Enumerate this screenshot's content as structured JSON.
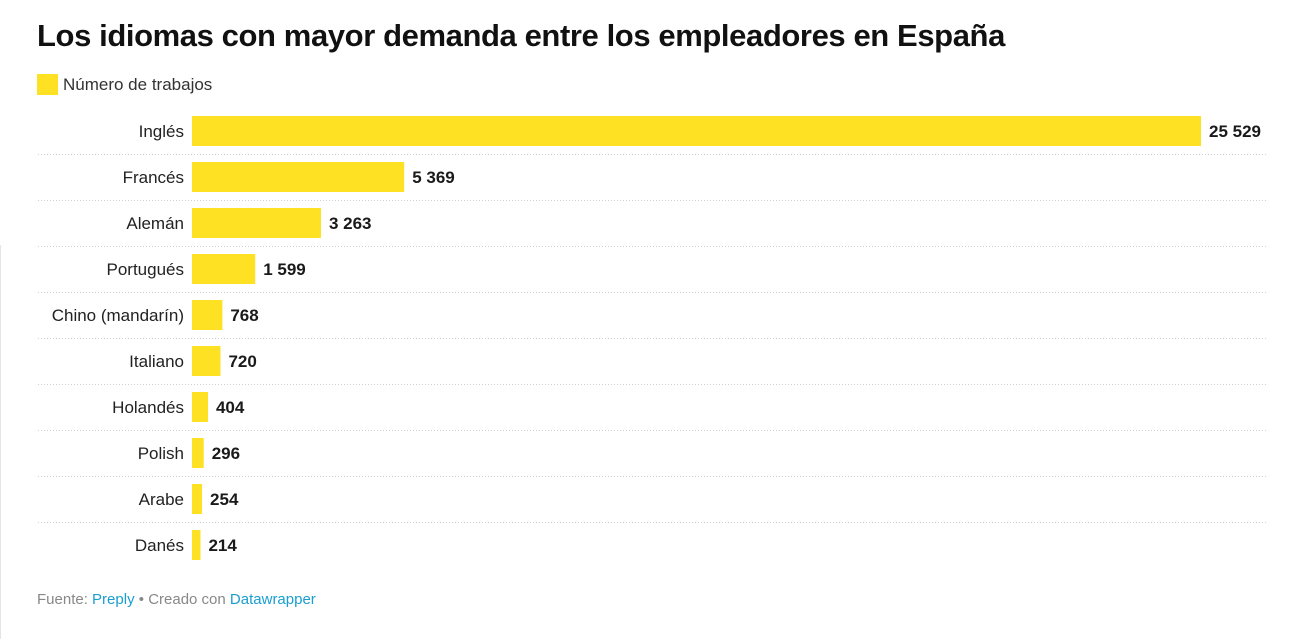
{
  "colors": {
    "bar": "#fee122",
    "label": "#222222",
    "value": "#1a1a1a",
    "grid": "#cfcfcf",
    "link": "#1a9ed1"
  },
  "footer": {
    "source_prefix": "Fuente:",
    "source_link": "Preply",
    "separator": "•",
    "created_prefix": "Creado con",
    "created_link": "Datawrapper"
  },
  "chart_data": {
    "type": "bar",
    "orientation": "horizontal",
    "title": "Los idiomas con mayor demanda entre los empleadores en España",
    "legend": [
      "Número de trabajos"
    ],
    "legend_placement": "top-left",
    "categories": [
      "Inglés",
      "Francés",
      "Alemán",
      "Portugués",
      "Chino (mandarín)",
      "Italiano",
      "Holandés",
      "Polish",
      "Arabe",
      "Danés"
    ],
    "series": [
      {
        "name": "Número de trabajos",
        "values": [
          25529,
          5369,
          3263,
          1599,
          768,
          720,
          404,
          296,
          254,
          214
        ]
      }
    ],
    "value_labels": [
      "25 529",
      "5 369",
      "3 263",
      "1 599",
      "768",
      "720",
      "404",
      "296",
      "254",
      "214"
    ],
    "xlim": [
      0,
      25529
    ],
    "grid": false
  }
}
